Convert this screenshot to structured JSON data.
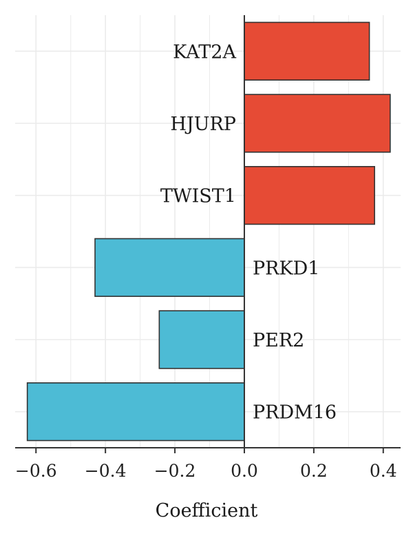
{
  "chart_data": {
    "type": "bar",
    "orientation": "horizontal",
    "categories": [
      "KAT2A",
      "HJURP",
      "TWIST1",
      "PRKD1",
      "PER2",
      "PRDM16"
    ],
    "values": [
      0.36,
      0.42,
      0.375,
      -0.43,
      -0.245,
      -0.625
    ],
    "xlabel": "Coefficient",
    "ylabel": "",
    "xlim": [
      -0.66,
      0.45
    ],
    "xticks": [
      -0.6,
      -0.4,
      -0.2,
      0.0,
      0.2,
      0.4
    ],
    "xtick_labels": [
      "−0.6",
      "−0.4",
      "−0.2",
      "0.0",
      "0.2",
      "0.4"
    ],
    "grid": true,
    "colors": {
      "positive": "#E64B35",
      "negative": "#4DBBD5",
      "bar_stroke": "#333333",
      "grid": "#EBEBEB",
      "axis": "#333333"
    }
  }
}
